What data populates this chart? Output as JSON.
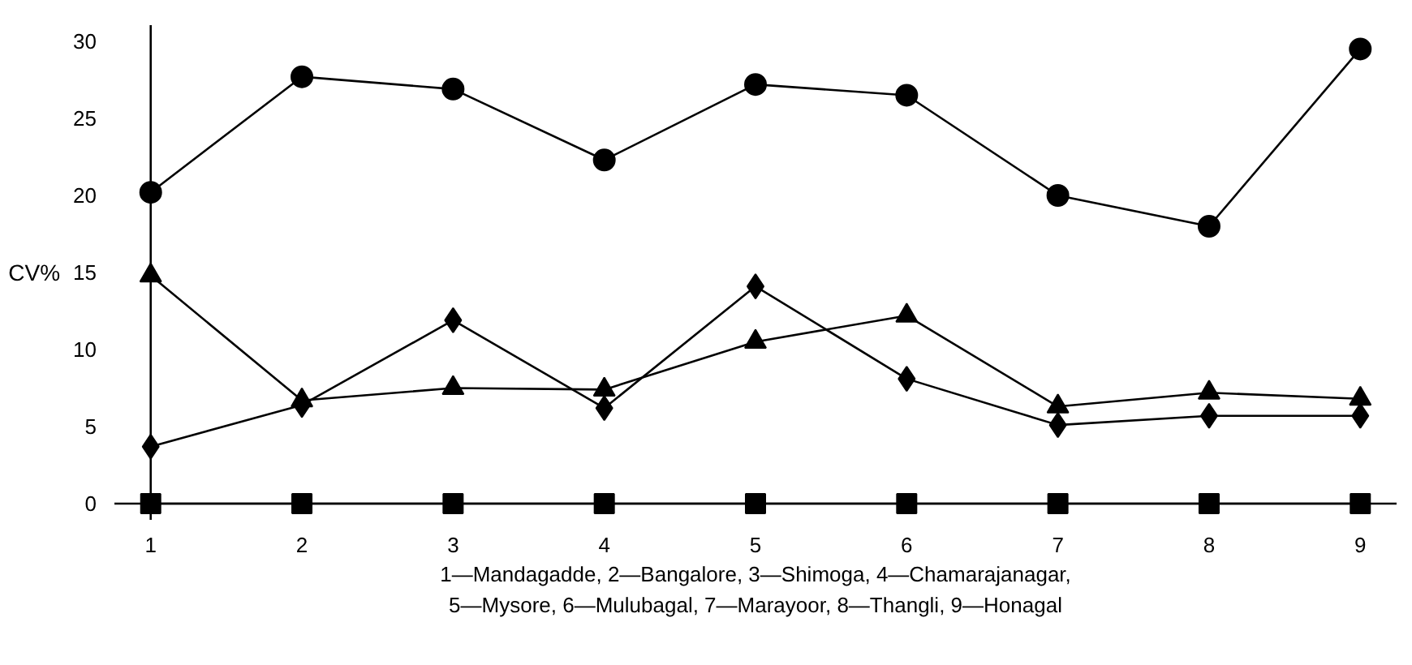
{
  "chart_data": {
    "type": "line",
    "ylabel": "CV%",
    "x": [
      1,
      2,
      3,
      4,
      5,
      6,
      7,
      8,
      9
    ],
    "xlim": [
      1,
      9
    ],
    "xticks": [
      1,
      2,
      3,
      4,
      5,
      6,
      7,
      8,
      9
    ],
    "ylim": [
      0,
      30
    ],
    "yticks": [
      0,
      5,
      10,
      15,
      20,
      25,
      30
    ],
    "grid": false,
    "line_style": "solid",
    "series": [
      {
        "color": "#000000",
        "marker": "circle",
        "values": [
          20.2,
          27.7,
          26.9,
          22.3,
          27.2,
          26.5,
          20.0,
          18.0,
          29.5
        ]
      },
      {
        "color": "#000000",
        "marker": "triangle",
        "values": [
          14.8,
          6.7,
          7.5,
          7.4,
          10.5,
          12.2,
          6.3,
          7.2,
          6.8
        ]
      },
      {
        "color": "#000000",
        "marker": "diamond",
        "values": [
          3.7,
          6.4,
          11.9,
          6.2,
          14.1,
          8.1,
          5.1,
          5.7,
          5.7
        ]
      },
      {
        "color": "#000000",
        "marker": "square",
        "values": [
          0,
          0,
          0,
          0,
          0,
          0,
          0,
          0,
          0
        ]
      }
    ],
    "annotations": [
      "1—Mandagadde, 2—Bangalore, 3—Shimoga, 4—Chamarajanagar,",
      "5—Mysore, 6—Mulubagal, 7—Marayoor, 8—Thangli, 9—Honagal"
    ]
  }
}
